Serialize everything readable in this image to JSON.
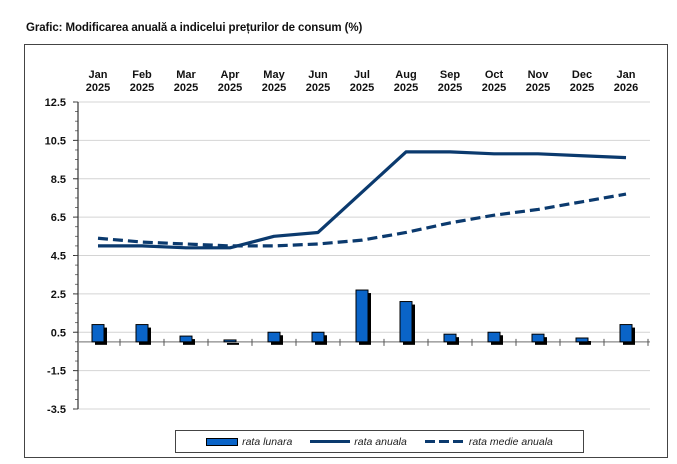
{
  "title": "Grafic: Modificarea anuală a indicelui prețurilor de consum (%)",
  "chart_data": {
    "type": "bar+line",
    "title": "Grafic: Modificarea anuală a indicelui prețurilor de consum (%)",
    "xlabel": "",
    "ylabel": "",
    "ylim": [
      -3.5,
      12.5
    ],
    "yticks": [
      12.5,
      10.5,
      8.5,
      6.5,
      4.5,
      2.5,
      0.5,
      -1.5,
      -3.5
    ],
    "ytick_labels": [
      "12.5",
      "10.5",
      "8.5",
      "6.5",
      "4.5",
      "2.5",
      "0.5",
      "-1.5",
      "-3.5"
    ],
    "grid": true,
    "x_axis_position": "top",
    "categories": [
      {
        "month": "Jan",
        "year": "2025"
      },
      {
        "month": "Feb",
        "year": "2025"
      },
      {
        "month": "Mar",
        "year": "2025"
      },
      {
        "month": "Apr",
        "year": "2025"
      },
      {
        "month": "May",
        "year": "2025"
      },
      {
        "month": "Jun",
        "year": "2025"
      },
      {
        "month": "Jul",
        "year": "2025"
      },
      {
        "month": "Aug",
        "year": "2025"
      },
      {
        "month": "Sep",
        "year": "2025"
      },
      {
        "month": "Oct",
        "year": "2025"
      },
      {
        "month": "Nov",
        "year": "2025"
      },
      {
        "month": "Dec",
        "year": "2025"
      },
      {
        "month": "Jan",
        "year": "2026"
      }
    ],
    "series": [
      {
        "name": "rata lunara",
        "type": "bar",
        "color": "#0a64c8",
        "values": [
          0.9,
          0.9,
          0.3,
          0.1,
          0.5,
          0.5,
          2.7,
          2.1,
          0.4,
          0.5,
          0.4,
          0.2,
          0.9
        ]
      },
      {
        "name": "rata anuala",
        "type": "line",
        "style": "solid",
        "color": "#0b3a6e",
        "values": [
          5.0,
          5.0,
          4.9,
          4.9,
          5.5,
          5.7,
          7.8,
          9.9,
          9.9,
          9.8,
          9.8,
          9.7,
          9.6
        ]
      },
      {
        "name": "rata medie anuala",
        "type": "line",
        "style": "dashed",
        "color": "#0b3a6e",
        "values": [
          5.4,
          5.2,
          5.1,
          5.0,
          5.0,
          5.1,
          5.3,
          5.7,
          6.2,
          6.6,
          6.9,
          7.3,
          7.7
        ]
      }
    ],
    "legend": {
      "placement": "bottom-center",
      "items": [
        "rata lunara",
        "rata anuala",
        "rata medie anuala"
      ]
    }
  }
}
